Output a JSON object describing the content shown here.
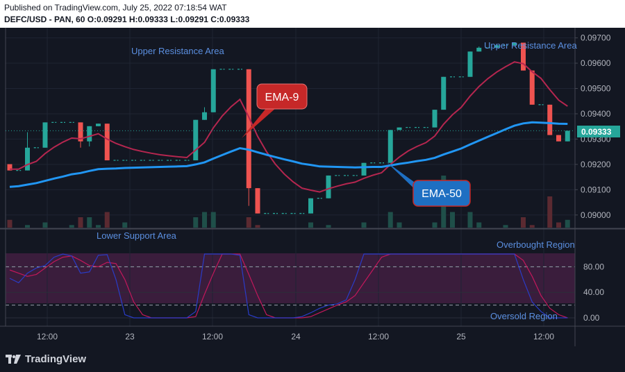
{
  "header": {
    "published": "Published on TradingView.com, July 25, 2022 07:18:54 WAT",
    "symbol_line": "DEFC/USD - PAN, 60  O:0.09291 H:0.09333 L:0.09291 C:0.09333"
  },
  "footer": {
    "brand": "TradingView"
  },
  "colors": {
    "background": "#131722",
    "up": "#26a69a",
    "down": "#ef5350",
    "ema9": "#b5264f",
    "ema50": "#2196f3",
    "stoch_k": "#2a3cc7",
    "stoch_d": "#c2185b",
    "band": "#3a1d3c",
    "annotation_blue": "#5b8fe0"
  },
  "chart_data": [
    {
      "type": "candlestick",
      "ylim": [
        0.0895,
        0.0974
      ],
      "yticks": [
        "0.09000",
        "0.09100",
        "0.09200",
        "0.09300",
        "0.09400",
        "0.09500",
        "0.09600",
        "0.09700"
      ],
      "xticks": [
        "12:00",
        "23",
        "12:00",
        "24",
        "12:00",
        "25",
        "12:00"
      ],
      "last_price": "0.09333",
      "candles": [
        {
          "o": 0.09201,
          "h": 0.09201,
          "l": 0.09176,
          "c": 0.09176
        },
        {
          "o": 0.09176,
          "h": 0.09176,
          "l": 0.09176,
          "c": 0.09176
        },
        {
          "o": 0.09176,
          "h": 0.09327,
          "l": 0.09176,
          "c": 0.09266
        },
        {
          "o": 0.09266,
          "h": 0.09266,
          "l": 0.09266,
          "c": 0.09266
        },
        {
          "o": 0.09266,
          "h": 0.09366,
          "l": 0.09266,
          "c": 0.09366
        },
        {
          "o": 0.09366,
          "h": 0.09366,
          "l": 0.09366,
          "c": 0.09366
        },
        {
          "o": 0.09366,
          "h": 0.09366,
          "l": 0.09366,
          "c": 0.09366
        },
        {
          "o": 0.09366,
          "h": 0.09366,
          "l": 0.09366,
          "c": 0.09366
        },
        {
          "o": 0.09366,
          "h": 0.09366,
          "l": 0.09266,
          "c": 0.09291
        },
        {
          "o": 0.09291,
          "h": 0.09351,
          "l": 0.09271,
          "c": 0.09351
        },
        {
          "o": 0.09351,
          "h": 0.09361,
          "l": 0.09351,
          "c": 0.09361
        },
        {
          "o": 0.09361,
          "h": 0.09361,
          "l": 0.09216,
          "c": 0.09216
        },
        {
          "o": 0.09216,
          "h": 0.09216,
          "l": 0.09216,
          "c": 0.09216
        },
        {
          "o": 0.09216,
          "h": 0.09216,
          "l": 0.09216,
          "c": 0.09216
        },
        {
          "o": 0.09216,
          "h": 0.09216,
          "l": 0.09216,
          "c": 0.09216
        },
        {
          "o": 0.09216,
          "h": 0.09216,
          "l": 0.09216,
          "c": 0.09216
        },
        {
          "o": 0.09216,
          "h": 0.09216,
          "l": 0.09216,
          "c": 0.09216
        },
        {
          "o": 0.09216,
          "h": 0.09216,
          "l": 0.09216,
          "c": 0.09216
        },
        {
          "o": 0.09216,
          "h": 0.09216,
          "l": 0.09216,
          "c": 0.09216
        },
        {
          "o": 0.09216,
          "h": 0.09216,
          "l": 0.09216,
          "c": 0.09216
        },
        {
          "o": 0.09216,
          "h": 0.09216,
          "l": 0.09216,
          "c": 0.09216
        },
        {
          "o": 0.09216,
          "h": 0.09376,
          "l": 0.09216,
          "c": 0.09376
        },
        {
          "o": 0.09376,
          "h": 0.09426,
          "l": 0.09376,
          "c": 0.09406
        },
        {
          "o": 0.09406,
          "h": 0.09576,
          "l": 0.09406,
          "c": 0.09576
        },
        {
          "o": 0.09576,
          "h": 0.09576,
          "l": 0.09576,
          "c": 0.09576
        },
        {
          "o": 0.09576,
          "h": 0.09576,
          "l": 0.09576,
          "c": 0.09576
        },
        {
          "o": 0.09576,
          "h": 0.09576,
          "l": 0.09576,
          "c": 0.09576
        },
        {
          "o": 0.09576,
          "h": 0.09576,
          "l": 0.09036,
          "c": 0.09106
        },
        {
          "o": 0.09106,
          "h": 0.09106,
          "l": 0.09006,
          "c": 0.09006
        },
        {
          "o": 0.09006,
          "h": 0.09006,
          "l": 0.09006,
          "c": 0.09006
        },
        {
          "o": 0.09006,
          "h": 0.09006,
          "l": 0.09006,
          "c": 0.09006
        },
        {
          "o": 0.09006,
          "h": 0.09006,
          "l": 0.09006,
          "c": 0.09006
        },
        {
          "o": 0.09006,
          "h": 0.09006,
          "l": 0.09006,
          "c": 0.09006
        },
        {
          "o": 0.09006,
          "h": 0.09006,
          "l": 0.09006,
          "c": 0.09006
        },
        {
          "o": 0.09006,
          "h": 0.09066,
          "l": 0.09006,
          "c": 0.09066
        },
        {
          "o": 0.09066,
          "h": 0.09066,
          "l": 0.09066,
          "c": 0.09066
        },
        {
          "o": 0.09066,
          "h": 0.09156,
          "l": 0.09066,
          "c": 0.09156
        },
        {
          "o": 0.09156,
          "h": 0.09156,
          "l": 0.09156,
          "c": 0.09156
        },
        {
          "o": 0.09156,
          "h": 0.09156,
          "l": 0.09156,
          "c": 0.09156
        },
        {
          "o": 0.09156,
          "h": 0.09156,
          "l": 0.09156,
          "c": 0.09156
        },
        {
          "o": 0.09156,
          "h": 0.09206,
          "l": 0.09156,
          "c": 0.09206
        },
        {
          "o": 0.09206,
          "h": 0.09206,
          "l": 0.09206,
          "c": 0.09206
        },
        {
          "o": 0.09206,
          "h": 0.09206,
          "l": 0.09206,
          "c": 0.09206
        },
        {
          "o": 0.09206,
          "h": 0.09336,
          "l": 0.09206,
          "c": 0.09336
        },
        {
          "o": 0.09336,
          "h": 0.09346,
          "l": 0.09336,
          "c": 0.09346
        },
        {
          "o": 0.09346,
          "h": 0.09346,
          "l": 0.09346,
          "c": 0.09346
        },
        {
          "o": 0.09346,
          "h": 0.09346,
          "l": 0.09346,
          "c": 0.09346
        },
        {
          "o": 0.09346,
          "h": 0.09346,
          "l": 0.09346,
          "c": 0.09346
        },
        {
          "o": 0.09346,
          "h": 0.09416,
          "l": 0.09346,
          "c": 0.09416
        },
        {
          "o": 0.09416,
          "h": 0.09546,
          "l": 0.09416,
          "c": 0.09546
        },
        {
          "o": 0.09546,
          "h": 0.09546,
          "l": 0.09546,
          "c": 0.09546
        },
        {
          "o": 0.09546,
          "h": 0.09546,
          "l": 0.09546,
          "c": 0.09546
        },
        {
          "o": 0.09546,
          "h": 0.09646,
          "l": 0.09546,
          "c": 0.09646
        },
        {
          "o": 0.09646,
          "h": 0.09666,
          "l": 0.09646,
          "c": 0.09661
        },
        {
          "o": 0.09661,
          "h": 0.09661,
          "l": 0.09661,
          "c": 0.09661
        },
        {
          "o": 0.09661,
          "h": 0.09671,
          "l": 0.09661,
          "c": 0.09671
        },
        {
          "o": 0.09671,
          "h": 0.09671,
          "l": 0.09671,
          "c": 0.09671
        },
        {
          "o": 0.09671,
          "h": 0.09681,
          "l": 0.09671,
          "c": 0.09681
        },
        {
          "o": 0.09681,
          "h": 0.09681,
          "l": 0.09571,
          "c": 0.09571
        },
        {
          "o": 0.09571,
          "h": 0.09571,
          "l": 0.09436,
          "c": 0.09436
        },
        {
          "o": 0.09436,
          "h": 0.09436,
          "l": 0.09436,
          "c": 0.09436
        },
        {
          "o": 0.09436,
          "h": 0.09436,
          "l": 0.09316,
          "c": 0.09316
        },
        {
          "o": 0.09316,
          "h": 0.09316,
          "l": 0.09291,
          "c": 0.09291
        },
        {
          "o": 0.09291,
          "h": 0.09333,
          "l": 0.09291,
          "c": 0.09333
        }
      ],
      "ema9": [
        0.09181,
        0.09181,
        0.09199,
        0.09212,
        0.09243,
        0.09268,
        0.09288,
        0.09304,
        0.09301,
        0.09311,
        0.09321,
        0.093,
        0.09283,
        0.0927,
        0.09259,
        0.09251,
        0.09244,
        0.09238,
        0.09234,
        0.0923,
        0.09227,
        0.09257,
        0.09287,
        0.09345,
        0.09391,
        0.09428,
        0.09457,
        0.09387,
        0.09311,
        0.0925,
        0.09201,
        0.09162,
        0.09131,
        0.09106,
        0.09098,
        0.09091,
        0.09104,
        0.09114,
        0.09123,
        0.0913,
        0.09145,
        0.09157,
        0.09167,
        0.092,
        0.09229,
        0.09253,
        0.09271,
        0.09286,
        0.09312,
        0.09359,
        0.09396,
        0.09426,
        0.0947,
        0.09508,
        0.09539,
        0.09565,
        0.09586,
        0.09605,
        0.09598,
        0.09566,
        0.0954,
        0.09495,
        0.09454,
        0.0943
      ],
      "ema50": [
        0.09111,
        0.09114,
        0.0912,
        0.09126,
        0.09135,
        0.09144,
        0.09152,
        0.09161,
        0.09166,
        0.09174,
        0.09181,
        0.09183,
        0.09184,
        0.09186,
        0.09187,
        0.09188,
        0.09189,
        0.0919,
        0.09191,
        0.09192,
        0.09193,
        0.092,
        0.09208,
        0.09223,
        0.09237,
        0.09251,
        0.09264,
        0.09258,
        0.09248,
        0.09238,
        0.09229,
        0.0922,
        0.09212,
        0.09203,
        0.09198,
        0.09192,
        0.09191,
        0.0919,
        0.09189,
        0.09188,
        0.09189,
        0.0919,
        0.0919,
        0.09196,
        0.09202,
        0.09207,
        0.09213,
        0.09218,
        0.09226,
        0.09239,
        0.09251,
        0.09263,
        0.09279,
        0.09294,
        0.09309,
        0.09324,
        0.09339,
        0.09353,
        0.09362,
        0.09366,
        0.09365,
        0.09363,
        0.09361,
        0.0936
      ],
      "volume": [
        0.15,
        0,
        0.05,
        0,
        0.1,
        0,
        0,
        0.05,
        0.2,
        0.2,
        0.05,
        0.3,
        0,
        0.1,
        0,
        0,
        0,
        0,
        0,
        0,
        0,
        0.2,
        0.3,
        0.3,
        0,
        0,
        0,
        0.2,
        0.05,
        0,
        0,
        0,
        0,
        0,
        0.1,
        0,
        0.05,
        0,
        0,
        0,
        0.1,
        0,
        0,
        0.3,
        0.1,
        0,
        0,
        0,
        0.1,
        1,
        0.3,
        0,
        0.3,
        0.1,
        0,
        0,
        0.05,
        0,
        0.2,
        0.05,
        0,
        0.6,
        0.1,
        0.15
      ],
      "stoch_k": [
        62,
        55,
        70,
        78,
        82,
        95,
        100,
        97,
        70,
        72,
        98,
        99,
        60,
        5,
        0,
        0,
        0,
        0,
        0,
        0,
        0,
        10,
        100,
        100,
        100,
        100,
        98,
        5,
        0,
        0,
        0,
        0,
        0,
        2,
        8,
        15,
        20,
        22,
        28,
        60,
        100,
        100,
        100,
        100,
        100,
        100,
        100,
        100,
        100,
        100,
        100,
        100,
        100,
        100,
        100,
        100,
        100,
        100,
        60,
        25,
        10,
        0,
        0,
        0
      ],
      "stoch_d": [
        75,
        70,
        65,
        68,
        78,
        88,
        95,
        97,
        90,
        82,
        80,
        87,
        85,
        60,
        25,
        5,
        0,
        0,
        0,
        0,
        0,
        2,
        37,
        70,
        100,
        100,
        100,
        68,
        35,
        5,
        0,
        0,
        0,
        0,
        2,
        8,
        14,
        20,
        25,
        35,
        55,
        75,
        95,
        100,
        100,
        100,
        100,
        100,
        100,
        100,
        100,
        100,
        100,
        100,
        100,
        100,
        100,
        100,
        90,
        65,
        35,
        15,
        5,
        0
      ],
      "stoch_yticks": [
        "80.00",
        "40.00",
        "0.00"
      ],
      "annotations": [
        "Upper Resistance Area",
        "Upper Resistance Area",
        "Lower Support Area",
        "Overbought Region",
        "Oversold Region",
        "EMA-9",
        "EMA-50"
      ]
    }
  ]
}
